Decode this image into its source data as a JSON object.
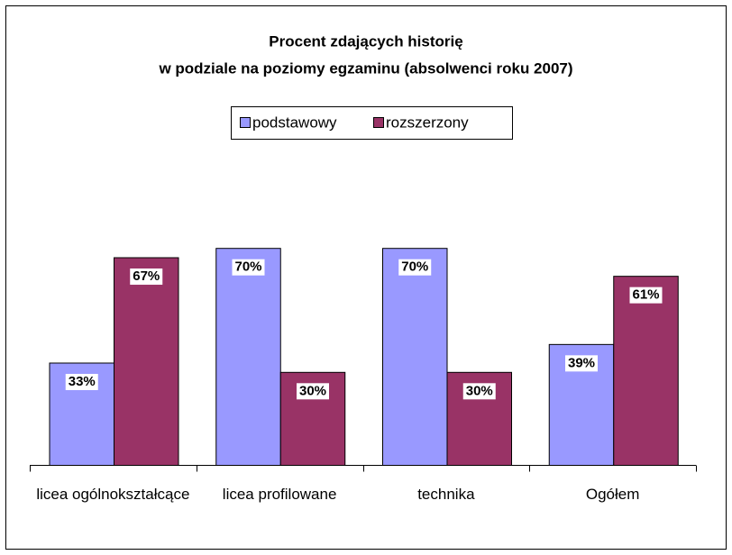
{
  "chart_data": {
    "type": "bar",
    "title": [
      "Procent zdających historię",
      "w podziale na poziomy egzaminu (absolwenci roku 2007)"
    ],
    "categories": [
      "licea ogólnokształcące",
      "licea profilowane",
      "technika",
      "Ogółem"
    ],
    "series": [
      {
        "name": "podstawowy",
        "color": "#9999ff",
        "values": [
          33,
          70,
          70,
          39
        ],
        "value_labels": [
          "33%",
          "70%",
          "70%",
          "39%"
        ]
      },
      {
        "name": "rozszerzony",
        "color": "#993366",
        "values": [
          67,
          30,
          30,
          61
        ],
        "value_labels": [
          "67%",
          "30%",
          "30%",
          "61%"
        ]
      }
    ],
    "legend": "top"
  }
}
